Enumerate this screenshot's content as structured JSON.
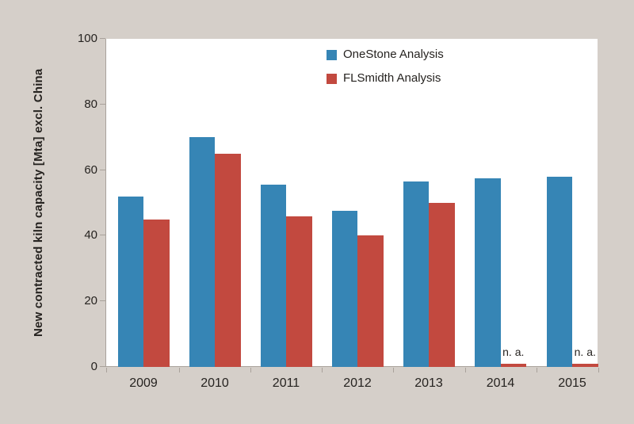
{
  "chart_data": {
    "type": "bar",
    "title": "",
    "categories": [
      "2009",
      "2010",
      "2011",
      "2012",
      "2013",
      "2014",
      "2015"
    ],
    "series": [
      {
        "name": "OneStone Analysis",
        "color": "#3685b5",
        "values": [
          52,
          70,
          55.5,
          47.5,
          56.5,
          57.5,
          58
        ]
      },
      {
        "name": "FLSmidth Analysis",
        "color": "#c2493f",
        "values": [
          45,
          65,
          46,
          40,
          50,
          null,
          null
        ]
      }
    ],
    "na_label": "n. a.",
    "na_stub_value": 1,
    "ylabel": "New contracted kiln capacity [Mta] excl. China",
    "xlabel": "",
    "yticks": [
      0,
      20,
      40,
      60,
      80,
      100
    ],
    "ylim": [
      0,
      100
    ],
    "grid": false,
    "legend_position": "top-inside",
    "colors": {
      "background": "#d5cfc9",
      "plot_background": "#ffffff",
      "axis": "#a9a29b",
      "text": "#262320"
    }
  }
}
